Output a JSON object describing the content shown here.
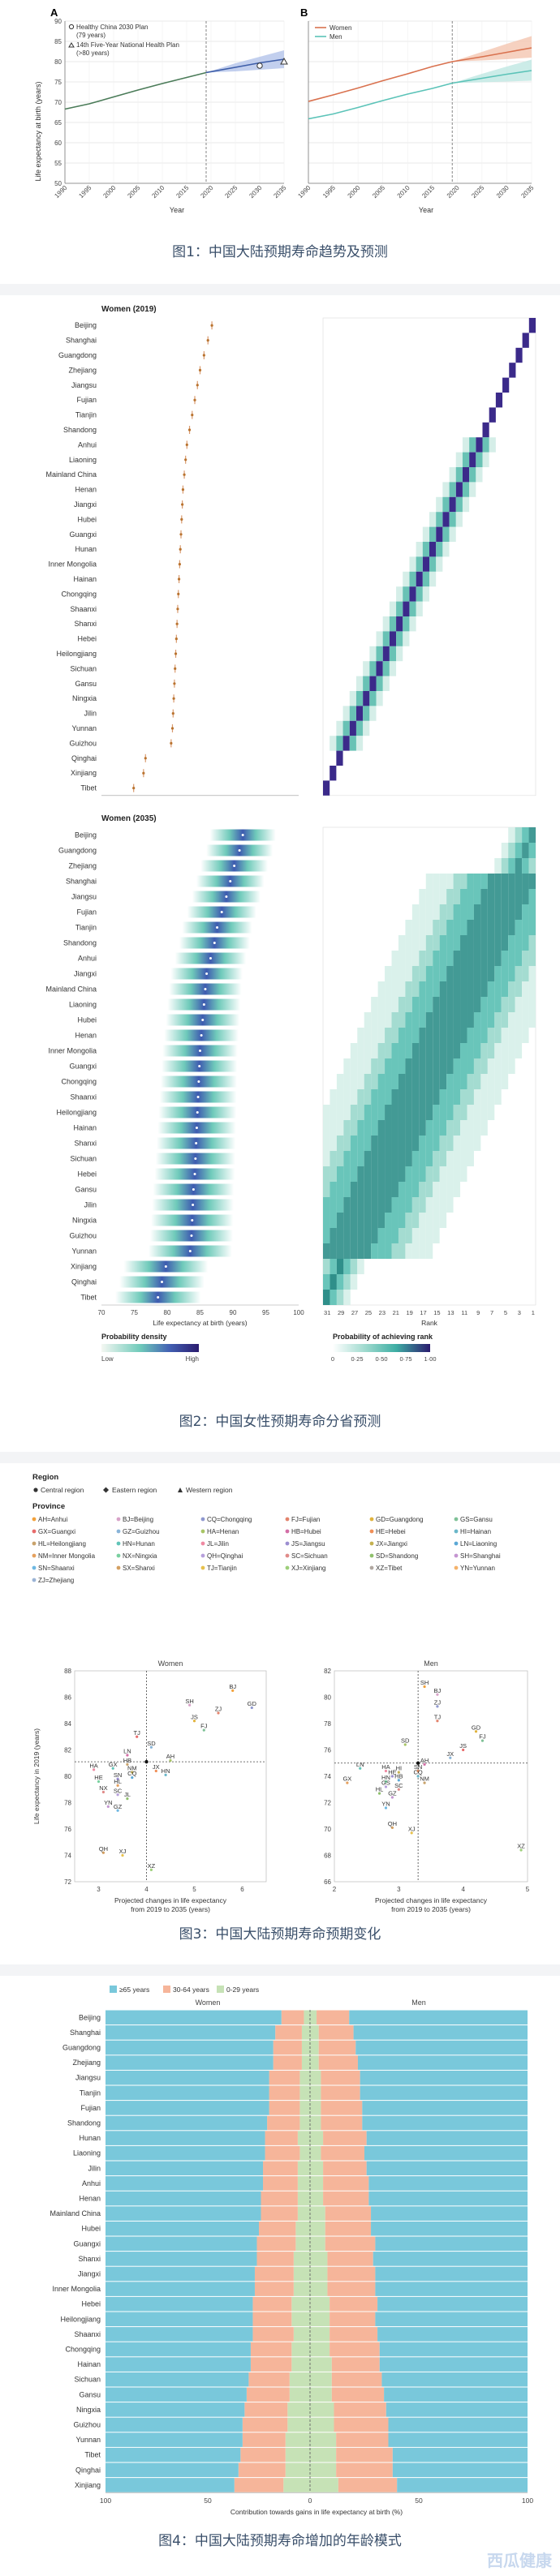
{
  "captions": {
    "fig1": "图1：中国大陆预期寿命趋势及预测",
    "fig2": "图2：中国女性预期寿命分省预测",
    "fig3": "图3：中国大陆预期寿命预期变化",
    "fig4": "图4：中国大陆预期寿命增加的年龄模式"
  },
  "watermark": "西瓜健康",
  "colors": {
    "women": "#d9714e",
    "men": "#5bc3b8",
    "china": "#3d5da8",
    "band_w": "#f4c6b0",
    "band_m": "#bfe7e2",
    "band_c": "#b3c3ea",
    "age65": "#79c8db",
    "age30": "#f6b59a",
    "age0": "#c6e2b6"
  },
  "chart_data": [
    {
      "type": "line",
      "panel": "A",
      "ylabel": "Life expectancy at birth (years)",
      "xlabel": "Year",
      "ylim": [
        50,
        90
      ],
      "xlim": [
        1990,
        2035
      ],
      "x_ticks": [
        "1990",
        "1995",
        "2000",
        "2005",
        "2010",
        "2015",
        "2020",
        "2025",
        "2030",
        "2035"
      ],
      "y_ticks": [
        "50",
        "55",
        "60",
        "65",
        "70",
        "75",
        "80",
        "85",
        "90"
      ],
      "legend": [
        "Healthy China 2030 Plan (79 years)",
        "14th Five-Year National Health Plan (>80 years)"
      ],
      "series": [
        {
          "x": [
            1990,
            1995,
            2000,
            2005,
            2010,
            2015,
            2019
          ],
          "values": [
            68.3,
            69.6,
            71.3,
            73.0,
            74.6,
            76.1,
            77.3
          ]
        },
        {
          "x": [
            2019,
            2025,
            2030,
            2035
          ],
          "values": [
            77.3,
            78.6,
            79.7,
            80.6
          ],
          "band_lo": [
            77.3,
            77.6,
            78.0,
            78.4
          ],
          "band_hi": [
            77.3,
            79.6,
            81.2,
            82.8
          ]
        }
      ],
      "targets": [
        {
          "x": 2030,
          "y": 79
        },
        {
          "x": 2035,
          "y": 80
        }
      ],
      "grid": true
    },
    {
      "type": "line",
      "panel": "B",
      "xlabel": "Year",
      "ylim": [
        50,
        90
      ],
      "xlim": [
        1990,
        2035
      ],
      "x_ticks": [
        "1990",
        "1995",
        "2000",
        "2005",
        "2010",
        "2015",
        "2020",
        "2025",
        "2030",
        "2035"
      ],
      "legend": [
        "Women",
        "Men"
      ],
      "series": [
        {
          "name": "Women",
          "x": [
            1990,
            1995,
            2000,
            2005,
            2010,
            2015,
            2019,
            2025,
            2030,
            2035
          ],
          "values": [
            70.2,
            71.8,
            73.5,
            75.3,
            77.0,
            78.8,
            80.0,
            81.2,
            82.3,
            83.4
          ],
          "band_lo": [
            null,
            null,
            null,
            null,
            null,
            null,
            80.0,
            80.3,
            80.6,
            81.0
          ],
          "band_hi": [
            null,
            null,
            null,
            null,
            null,
            null,
            80.0,
            82.4,
            84.4,
            86.3
          ]
        },
        {
          "name": "Men",
          "x": [
            1990,
            1995,
            2000,
            2005,
            2010,
            2015,
            2019,
            2025,
            2030,
            2035
          ],
          "values": [
            65.9,
            67.1,
            68.7,
            70.4,
            72.0,
            73.4,
            74.7,
            75.9,
            76.9,
            77.8
          ],
          "band_lo": [
            null,
            null,
            null,
            null,
            null,
            null,
            74.7,
            74.9,
            75.1,
            75.3
          ],
          "band_hi": [
            null,
            null,
            null,
            null,
            null,
            null,
            74.7,
            77.0,
            78.8,
            80.5
          ]
        }
      ],
      "grid": true
    },
    {
      "type": "scatter",
      "title": "Women (2019)",
      "provinces": [
        "Beijing",
        "Shanghai",
        "Guangdong",
        "Zhejiang",
        "Jiangsu",
        "Fujian",
        "Tianjin",
        "Shandong",
        "Anhui",
        "Liaoning",
        "Mainland China",
        "Henan",
        "Jiangxi",
        "Hubei",
        "Guangxi",
        "Hunan",
        "Inner Mongolia",
        "Hainan",
        "Chongqing",
        "Shaanxi",
        "Shanxi",
        "Hebei",
        "Heilongjiang",
        "Sichuan",
        "Gansu",
        "Ningxia",
        "Jilin",
        "Yunnan",
        "Guizhou",
        "Qinghai",
        "Xinjiang",
        "Tibet"
      ],
      "values": [
        86.8,
        86.2,
        85.6,
        85.0,
        84.6,
        84.2,
        83.8,
        83.4,
        83.0,
        82.8,
        82.6,
        82.4,
        82.3,
        82.2,
        82.1,
        82.0,
        81.9,
        81.8,
        81.7,
        81.6,
        81.5,
        81.4,
        81.3,
        81.2,
        81.1,
        81.0,
        80.9,
        80.8,
        80.6,
        76.7,
        76.4,
        74.9
      ],
      "xlim": [
        70,
        100
      ]
    },
    {
      "type": "heatmap",
      "title": "Women (2035)",
      "xlabel": "Life expectancy at birth (years)",
      "x_ticks": [
        "70",
        "75",
        "80",
        "85",
        "90",
        "95",
        "100"
      ],
      "rank_ticks": [
        "31",
        "29",
        "27",
        "25",
        "23",
        "21",
        "19",
        "17",
        "15",
        "13",
        "11",
        "9",
        "7",
        "5",
        "3",
        "1"
      ],
      "rank_xlabel": "Rank",
      "provinces": [
        "Beijing",
        "Guangdong",
        "Zhejiang",
        "Shanghai",
        "Jiangsu",
        "Fujian",
        "Tianjin",
        "Shandong",
        "Anhui",
        "Jiangxi",
        "Mainland China",
        "Liaoning",
        "Hubei",
        "Henan",
        "Inner Mongolia",
        "Guangxi",
        "Chongqing",
        "Shaanxi",
        "Heilongjiang",
        "Hainan",
        "Shanxi",
        "Sichuan",
        "Hebei",
        "Gansu",
        "Jilin",
        "Ningxia",
        "Guizhou",
        "Yunnan",
        "Xinjiang",
        "Qinghai",
        "Tibet"
      ],
      "values": [
        91.5,
        91.0,
        90.2,
        89.6,
        89.0,
        88.3,
        87.6,
        87.2,
        86.6,
        86.0,
        85.8,
        85.6,
        85.4,
        85.2,
        85.0,
        84.9,
        84.8,
        84.7,
        84.6,
        84.5,
        84.4,
        84.3,
        84.2,
        84.0,
        83.9,
        83.8,
        83.7,
        83.5,
        79.8,
        79.2,
        78.6
      ],
      "legend_density": {
        "title": "Probability density",
        "low": "Low",
        "high": "High"
      },
      "legend_rank": {
        "title": "Probability of achieving rank",
        "ticks": [
          "0",
          "0·25",
          "0·50",
          "0·75",
          "1·00"
        ]
      }
    },
    {
      "type": "scatter",
      "panels": [
        "Women",
        "Men"
      ],
      "legend_region_title": "Region",
      "legend_regions": [
        "Central region",
        "Eastern region",
        "Western region"
      ],
      "legend_province_title": "Province",
      "legend_provinces": [
        "AH=Anhui",
        "BJ=Beijing",
        "CQ=Chongqing",
        "FJ=Fujian",
        "GD=Guangdong",
        "GS=Gansu",
        "GX=Guangxi",
        "GZ=Guizhou",
        "HA=Henan",
        "HB=Hubei",
        "HE=Hebei",
        "HI=Hainan",
        "HL=Heilongjiang",
        "HN=Hunan",
        "JL=Jilin",
        "JS=Jiangsu",
        "JX=Jiangxi",
        "LN=Liaoning",
        "NM=Inner Mongolia",
        "NX=Ningxia",
        "QH=Qinghai",
        "SC=Sichuan",
        "SD=Shandong",
        "SH=Shanghai",
        "SN=Shaanxi",
        "SX=Shanxi",
        "TJ=Tianjin",
        "XJ=Xinjiang",
        "XZ=Tibet",
        "YN=Yunnan",
        "ZJ=Zhejiang"
      ],
      "ylabel": "Life expectancy in 2019 (years)",
      "xlabel": "Projected changes in life expectancy from 2019 to 2035 (years)",
      "women": {
        "xlim": [
          2.5,
          6.5
        ],
        "ylim": [
          72,
          88
        ],
        "x_ticks": [
          "3",
          "4",
          "5",
          "6"
        ],
        "y_ticks": [
          "72",
          "74",
          "76",
          "78",
          "80",
          "82",
          "84",
          "86",
          "88"
        ],
        "ref": [
          4.0,
          81.1
        ],
        "points": [
          {
            "label": "BJ",
            "x": 5.8,
            "y": 86.5
          },
          {
            "label": "SH",
            "x": 4.9,
            "y": 85.4
          },
          {
            "label": "GD",
            "x": 6.2,
            "y": 85.2
          },
          {
            "label": "ZJ",
            "x": 5.5,
            "y": 84.8
          },
          {
            "label": "JS",
            "x": 5.0,
            "y": 84.2
          },
          {
            "label": "FJ",
            "x": 5.2,
            "y": 83.5
          },
          {
            "label": "TJ",
            "x": 3.8,
            "y": 83.0
          },
          {
            "label": "SD",
            "x": 4.1,
            "y": 82.2
          },
          {
            "label": "AH",
            "x": 4.5,
            "y": 81.2
          },
          {
            "label": "LN",
            "x": 3.6,
            "y": 81.6
          },
          {
            "label": "JX",
            "x": 4.2,
            "y": 80.4
          },
          {
            "label": "HN",
            "x": 4.4,
            "y": 80.1
          },
          {
            "label": "HB",
            "x": 3.6,
            "y": 80.9
          },
          {
            "label": "GX",
            "x": 3.3,
            "y": 80.6
          },
          {
            "label": "HA",
            "x": 2.9,
            "y": 80.5
          },
          {
            "label": "SN",
            "x": 3.4,
            "y": 79.8
          },
          {
            "label": "NM",
            "x": 3.7,
            "y": 80.3
          },
          {
            "label": "CQ",
            "x": 3.7,
            "y": 79.9
          },
          {
            "label": "HL",
            "x": 3.4,
            "y": 79.3
          },
          {
            "label": "HE",
            "x": 3.0,
            "y": 79.6
          },
          {
            "label": "SC",
            "x": 3.4,
            "y": 78.6
          },
          {
            "label": "NX",
            "x": 3.1,
            "y": 78.8
          },
          {
            "label": "JL",
            "x": 3.6,
            "y": 78.3
          },
          {
            "label": "YN",
            "x": 3.2,
            "y": 77.7
          },
          {
            "label": "GZ",
            "x": 3.4,
            "y": 77.4
          },
          {
            "label": "QH",
            "x": 3.1,
            "y": 74.2
          },
          {
            "label": "XJ",
            "x": 3.5,
            "y": 74.0
          },
          {
            "label": "XZ",
            "x": 4.1,
            "y": 72.9
          }
        ]
      },
      "men": {
        "xlim": [
          2,
          5
        ],
        "ylim": [
          66,
          82
        ],
        "x_ticks": [
          "2",
          "3",
          "4",
          "5"
        ],
        "y_ticks": [
          "66",
          "68",
          "70",
          "72",
          "74",
          "76",
          "78",
          "80",
          "82"
        ],
        "ref": [
          3.3,
          75.0
        ],
        "points": [
          {
            "label": "SH",
            "x": 3.4,
            "y": 80.8
          },
          {
            "label": "BJ",
            "x": 3.6,
            "y": 80.2
          },
          {
            "label": "ZJ",
            "x": 3.6,
            "y": 79.3
          },
          {
            "label": "TJ",
            "x": 3.6,
            "y": 78.2
          },
          {
            "label": "GD",
            "x": 4.2,
            "y": 77.4
          },
          {
            "label": "FJ",
            "x": 4.3,
            "y": 76.7
          },
          {
            "label": "JS",
            "x": 4.0,
            "y": 76.0
          },
          {
            "label": "JX",
            "x": 3.8,
            "y": 75.4
          },
          {
            "label": "SD",
            "x": 3.1,
            "y": 76.4
          },
          {
            "label": "AH",
            "x": 3.4,
            "y": 74.9
          },
          {
            "label": "SN",
            "x": 3.3,
            "y": 74.4
          },
          {
            "label": "CQ",
            "x": 3.3,
            "y": 74.0
          },
          {
            "label": "NM",
            "x": 3.4,
            "y": 73.5
          },
          {
            "label": "LN",
            "x": 2.4,
            "y": 74.6
          },
          {
            "label": "HA",
            "x": 2.8,
            "y": 74.4
          },
          {
            "label": "HE",
            "x": 2.9,
            "y": 74.0
          },
          {
            "label": "HI",
            "x": 3.0,
            "y": 74.3
          },
          {
            "label": "HB",
            "x": 3.0,
            "y": 73.7
          },
          {
            "label": "GX",
            "x": 2.2,
            "y": 73.5
          },
          {
            "label": "HN",
            "x": 2.8,
            "y": 73.6
          },
          {
            "label": "GS",
            "x": 2.8,
            "y": 73.2
          },
          {
            "label": "SC",
            "x": 3.0,
            "y": 73.0
          },
          {
            "label": "HL",
            "x": 2.7,
            "y": 72.7
          },
          {
            "label": "GZ",
            "x": 2.9,
            "y": 72.4
          },
          {
            "label": "YN",
            "x": 2.8,
            "y": 71.6
          },
          {
            "label": "QH",
            "x": 2.9,
            "y": 70.1
          },
          {
            "label": "XJ",
            "x": 3.2,
            "y": 69.7
          },
          {
            "label": "XZ",
            "x": 4.9,
            "y": 68.4
          }
        ]
      }
    },
    {
      "type": "bar",
      "stacked": true,
      "panels": [
        "Women",
        "Men"
      ],
      "legend": [
        "≥65 years",
        "30-64 years",
        "0-29 years"
      ],
      "xlabel": "Contribution towards gains in life expectancy at birth (%)",
      "x_ticks": [
        "100",
        "50",
        "0",
        "50",
        "100"
      ],
      "categories": [
        "Beijing",
        "Shanghai",
        "Guangdong",
        "Zhejiang",
        "Jiangsu",
        "Tianjin",
        "Fujian",
        "Shandong",
        "Hunan",
        "Liaoning",
        "Jilin",
        "Anhui",
        "Henan",
        "Mainland China",
        "Hubei",
        "Guangxi",
        "Shanxi",
        "Jiangxi",
        "Inner Mongolia",
        "Hebei",
        "Heilongjiang",
        "Shaanxi",
        "Chongqing",
        "Hainan",
        "Sichuan",
        "Gansu",
        "Ningxia",
        "Guizhou",
        "Yunnan",
        "Tibet",
        "Qinghai",
        "Xinjiang"
      ],
      "women_series": [
        {
          "name": "≥65 years",
          "values": [
            86,
            83,
            82,
            82,
            80,
            80,
            80,
            79,
            78,
            78,
            77,
            77,
            76,
            76,
            75,
            74,
            74,
            73,
            73,
            72,
            72,
            72,
            71,
            71,
            70,
            69,
            68,
            67,
            67,
            66,
            65,
            63
          ]
        },
        {
          "name": "30-64 years",
          "values": [
            11,
            13,
            14,
            14,
            15,
            15,
            15,
            16,
            16,
            17,
            17,
            17,
            18,
            18,
            18,
            19,
            18,
            19,
            19,
            19,
            19,
            20,
            20,
            20,
            20,
            21,
            21,
            22,
            21,
            22,
            23,
            24
          ]
        },
        {
          "name": "0-29 years",
          "values": [
            3,
            4,
            4,
            4,
            5,
            5,
            5,
            5,
            6,
            5,
            6,
            6,
            6,
            6,
            7,
            7,
            8,
            8,
            8,
            9,
            9,
            8,
            9,
            9,
            10,
            10,
            11,
            11,
            12,
            12,
            12,
            13
          ]
        }
      ],
      "men_series": [
        {
          "name": "≥65 years",
          "values": [
            82,
            80,
            79,
            78,
            77,
            77,
            76,
            76,
            74,
            75,
            74,
            73,
            73,
            72,
            72,
            70,
            71,
            70,
            70,
            69,
            70,
            69,
            68,
            68,
            67,
            66,
            65,
            64,
            64,
            62,
            62,
            60
          ]
        },
        {
          "name": "30-64 years",
          "values": [
            15,
            16,
            17,
            18,
            18,
            18,
            19,
            19,
            20,
            20,
            20,
            21,
            21,
            21,
            21,
            23,
            21,
            22,
            22,
            22,
            21,
            22,
            23,
            22,
            23,
            24,
            24,
            25,
            24,
            26,
            26,
            27
          ]
        },
        {
          "name": "0-29 years",
          "values": [
            3,
            4,
            4,
            4,
            5,
            5,
            5,
            5,
            6,
            5,
            6,
            6,
            6,
            7,
            7,
            7,
            8,
            8,
            8,
            9,
            9,
            9,
            9,
            10,
            10,
            10,
            11,
            11,
            12,
            12,
            12,
            13
          ]
        }
      ]
    }
  ]
}
